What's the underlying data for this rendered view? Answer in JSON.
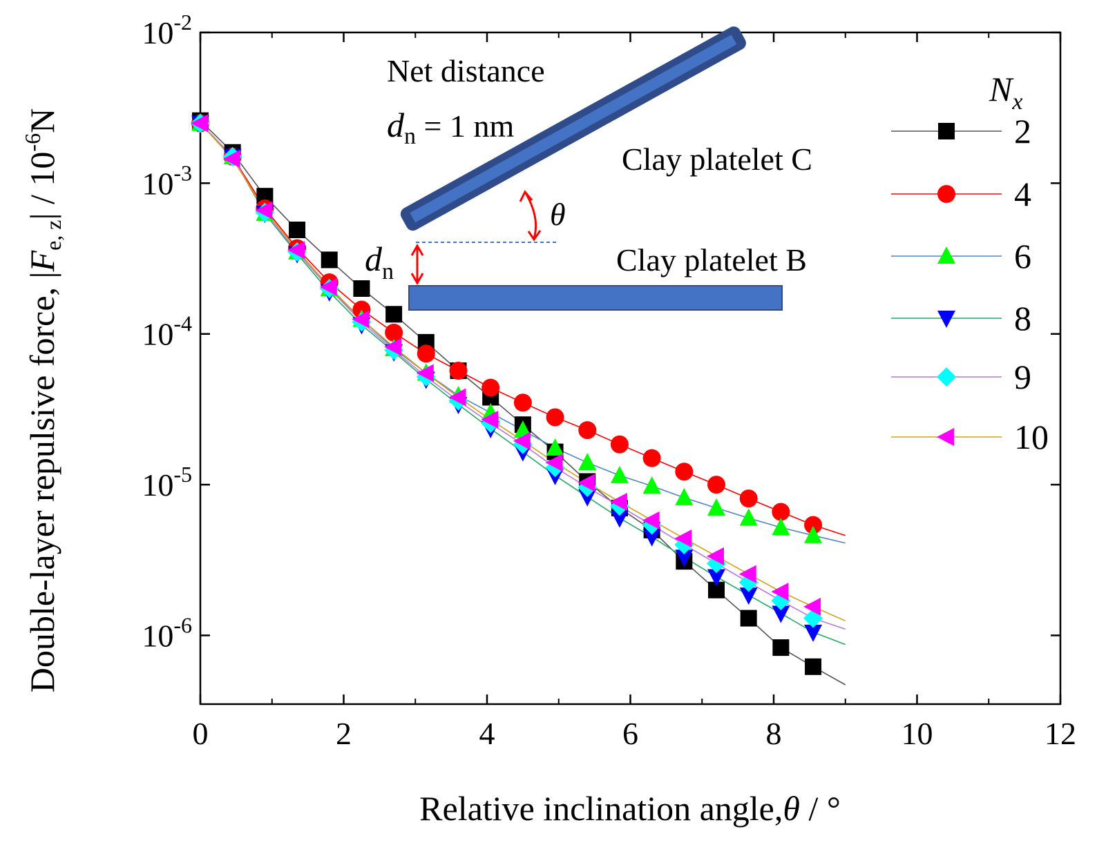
{
  "chart_data": {
    "type": "scatter",
    "title": "",
    "xlabel": "Relative inclination angle,",
    "xlabel_symbol": "θ",
    "xlabel_unit": "/ °",
    "ylabel": "Double-layer repulsive force,",
    "ylabel_symbol": "F",
    "ylabel_subscript": "e, z",
    "ylabel_unit": "/ 10",
    "ylabel_unit_exp": "-6",
    "ylabel_unit_tail": "N",
    "xlim": [
      0,
      12
    ],
    "ylim": [
      3.5e-07,
      0.01
    ],
    "yscale": "log",
    "x_ticks": [
      "0",
      "2",
      "4",
      "6",
      "8",
      "10",
      "12"
    ],
    "y_ticks": [
      {
        "base": "10",
        "exp": "-2",
        "value": 0.01
      },
      {
        "base": "10",
        "exp": "-3",
        "value": 0.001
      },
      {
        "base": "10",
        "exp": "-4",
        "value": 0.0001
      },
      {
        "base": "10",
        "exp": "-5",
        "value": 1e-05
      },
      {
        "base": "10",
        "exp": "-6",
        "value": 1e-06
      }
    ],
    "legend_title": "N",
    "legend_title_sub": "x",
    "legend_position": "right",
    "x": [
      0,
      0.45,
      0.9,
      1.35,
      1.8,
      2.25,
      2.7,
      3.15,
      3.6,
      4.05,
      4.5,
      4.95,
      5.4,
      5.85,
      6.3,
      6.75,
      7.2,
      7.65,
      8.1,
      8.55
    ],
    "series": [
      {
        "name": "2",
        "marker": "square",
        "color": "#000000",
        "line_color": "#555555",
        "values": [
          0.0026,
          0.0016,
          0.00082,
          0.00049,
          0.00031,
          0.0002,
          0.000135,
          8.8e-05,
          5.7e-05,
          3.8e-05,
          2.5e-05,
          1.65e-05,
          1.05e-05,
          7e-06,
          5e-06,
          3.1e-06,
          2e-06,
          1.3e-06,
          8.3e-07,
          6.2e-07
        ],
        "line_end": 4.7e-07
      },
      {
        "name": "4",
        "marker": "circle",
        "color": "#ff0000",
        "line_color": "#ff0000",
        "values": [
          0.0025,
          0.0015,
          0.00068,
          0.00037,
          0.00022,
          0.000145,
          0.000102,
          7.4e-05,
          5.7e-05,
          4.4e-05,
          3.5e-05,
          2.8e-05,
          2.3e-05,
          1.85e-05,
          1.5e-05,
          1.22e-05,
          1e-05,
          8.1e-06,
          6.6e-06,
          5.4e-06
        ],
        "line_end": 4.6e-06
      },
      {
        "name": "6",
        "marker": "triangle-up",
        "color": "#00ff00",
        "line_color": "#4a86c8",
        "values": [
          0.0025,
          0.0015,
          0.00063,
          0.00035,
          0.0002,
          0.000125,
          8e-05,
          5.5e-05,
          3.9e-05,
          3e-05,
          2.3e-05,
          1.75e-05,
          1.4e-05,
          1.15e-05,
          9.8e-06,
          8.2e-06,
          7e-06,
          6e-06,
          5.2e-06,
          4.6e-06
        ],
        "line_end": 4.1e-06
      },
      {
        "name": "8",
        "marker": "triangle-down",
        "color": "#0000ff",
        "line_color": "#22aa66",
        "values": [
          0.0025,
          0.0015,
          0.00063,
          0.00034,
          0.00019,
          0.000115,
          7.6e-05,
          5e-05,
          3.4e-05,
          2.35e-05,
          1.65e-05,
          1.15e-05,
          8.3e-06,
          6e-06,
          4.5e-06,
          3.3e-06,
          2.45e-06,
          1.85e-06,
          1.4e-06,
          1.05e-06
        ],
        "line_end": 8.7e-07
      },
      {
        "name": "9",
        "marker": "diamond",
        "color": "#00ffff",
        "line_color": "#bb77dd",
        "values": [
          0.0025,
          0.0015,
          0.00064,
          0.00035,
          0.0002,
          0.00012,
          7.8e-05,
          5.2e-05,
          3.6e-05,
          2.55e-05,
          1.85e-05,
          1.3e-05,
          9.6e-06,
          7.2e-06,
          5.4e-06,
          4e-06,
          3e-06,
          2.25e-06,
          1.7e-06,
          1.3e-06
        ],
        "line_end": 1.1e-06
      },
      {
        "name": "10",
        "marker": "triangle-left",
        "color": "#ff00ff",
        "line_color": "#d4a017",
        "values": [
          0.0025,
          0.00145,
          0.00066,
          0.00036,
          0.000205,
          0.000125,
          8.2e-05,
          5.5e-05,
          3.8e-05,
          2.7e-05,
          1.95e-05,
          1.4e-05,
          1.03e-05,
          7.7e-06,
          5.8e-06,
          4.4e-06,
          3.35e-06,
          2.55e-06,
          1.95e-06,
          1.55e-06
        ],
        "line_end": 1.25e-06
      }
    ],
    "line_end_x": 9.0,
    "annotations": {
      "net_distance": "Net distance",
      "d_symbol": "d",
      "d_sub": "n",
      "d_value": " = 1 nm",
      "platelet_c": "Clay platelet C",
      "platelet_b": "Clay platelet B",
      "theta": "θ",
      "dn_label_symbol": "d",
      "dn_label_sub": "n"
    },
    "colors": {
      "platelet_fill": "#4472c4",
      "platelet_edge": "#2f4b8a",
      "arrow": "#ff0000"
    }
  }
}
